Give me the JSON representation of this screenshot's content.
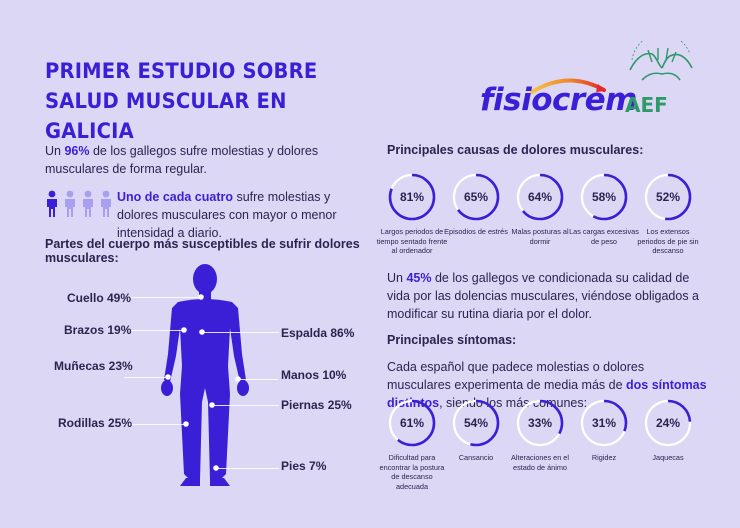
{
  "header": {
    "title_line1": "PRIMER ESTUDIO SOBRE",
    "title_line2": "SALUD MUSCULAR EN GALICIA",
    "logo_fisiocrem": "fisiocrem",
    "logo_aef": "AEF"
  },
  "intro": {
    "pre": "Un ",
    "pct": "96%",
    "post": " de los gallegos sufre molestias y dolores musculares de forma regular."
  },
  "one_in_four": {
    "highlight": "Uno de cada cuatro",
    "rest": " sufre molestias y dolores musculares con mayor o menor intensidad a diario.",
    "people_total": 4,
    "people_highlighted": 1
  },
  "body_section": {
    "heading": "Partes del cuerpo más susceptibles de sufrir dolores musculares:",
    "labels": {
      "cuello": "Cuello 49%",
      "brazos": "Brazos 19%",
      "munecas": "Muñecas 23%",
      "rodillas": "Rodillas 25%",
      "espalda": "Espalda 86%",
      "manos": "Manos 10%",
      "piernas": "Piernas 25%",
      "pies": "Pies 7%"
    }
  },
  "causes": {
    "heading": "Principales causas de dolores musculares:",
    "items": [
      {
        "value": 81,
        "label": "81%",
        "caption": "Largos periodos de tiempo sentado frente al ordenador"
      },
      {
        "value": 65,
        "label": "65%",
        "caption": "Episodios de estrés"
      },
      {
        "value": 64,
        "label": "64%",
        "caption": "Malas posturas al dormir"
      },
      {
        "value": 58,
        "label": "58%",
        "caption": "Las cargas excesivas de peso"
      },
      {
        "value": 52,
        "label": "52%",
        "caption": "Los extensos periodos de pie sin descanso"
      }
    ]
  },
  "quality": {
    "pre": "Un ",
    "pct": "45%",
    "post": " de los gallegos ve condicionada su calidad de vida por las dolencias musculares, viéndose obligados a modificar su rutina diaria por el dolor."
  },
  "symptoms": {
    "heading": "Principales síntomas:",
    "intro_pre": "Cada español que padece molestias o dolores musculares experimenta de media más de ",
    "intro_hl": "dos síntomas distintos",
    "intro_post": ", siendo los más comunes:",
    "items": [
      {
        "value": 61,
        "label": "61%",
        "caption": "Dificultad para encontrar la postura de descanso adecuada"
      },
      {
        "value": 54,
        "label": "54%",
        "caption": "Cansancio"
      },
      {
        "value": 33,
        "label": "33%",
        "caption": "Alteraciones en el estado de ánimo"
      },
      {
        "value": 31,
        "label": "31%",
        "caption": "Rigidez"
      },
      {
        "value": 24,
        "label": "24%",
        "caption": "Jaquecas"
      }
    ]
  },
  "colors": {
    "background": "#dcd7f5",
    "accent": "#3a1fd6",
    "person_light": "#a99ff0",
    "ring_track": "#ffffff",
    "aef_green": "#2e9a6a"
  }
}
